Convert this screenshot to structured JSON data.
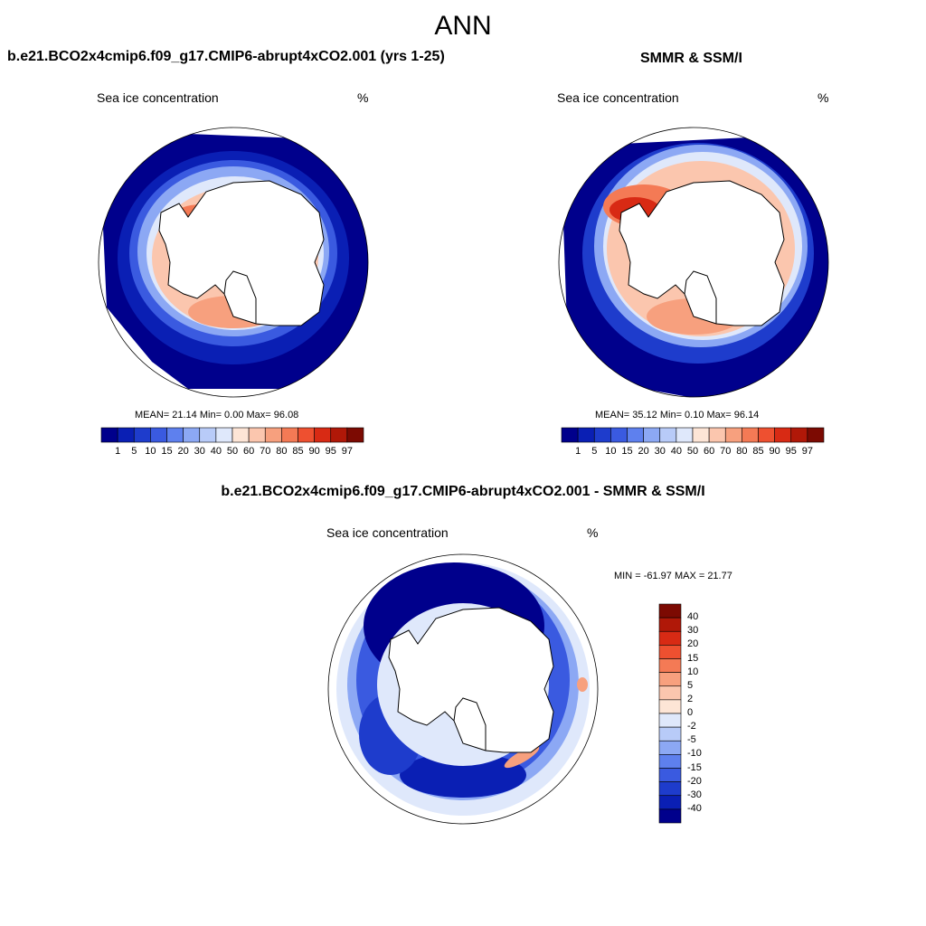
{
  "figure": {
    "season": "ANN"
  },
  "panels": {
    "model": {
      "title": "b.e21.BCO2x4cmip6.f09_g17.CMIP6-abrupt4xCO2.001 (yrs 1-25)",
      "variable": "Sea ice concentration",
      "units": "%",
      "stats": "MEAN=  21.14  Min=   0.00  Max=   96.08"
    },
    "obs": {
      "title": "SMMR & SSM/I",
      "variable": "Sea ice concentration",
      "units": "%",
      "stats": "MEAN=  35.12  Min=   0.10  Max=   96.14"
    },
    "diff": {
      "title": "b.e21.BCO2x4cmip6.f09_g17.CMIP6-abrupt4xCO2.001 - SMMR & SSM/I",
      "variable": "Sea ice concentration",
      "units": "%",
      "stats": "MIN = -61.97 MAX =  21.77"
    }
  },
  "colorbars": {
    "concentration": {
      "ticks": [
        "1",
        "5",
        "10",
        "15",
        "20",
        "30",
        "40",
        "50",
        "60",
        "70",
        "80",
        "85",
        "90",
        "95",
        "97"
      ],
      "colors": [
        "#00008c",
        "#0a1fb4",
        "#1e3ccc",
        "#3a5ae0",
        "#5e80ee",
        "#8ca8f4",
        "#b8cbf8",
        "#dfe8fb",
        "#fde5d6",
        "#fbc6ae",
        "#f7a07e",
        "#f47a55",
        "#ee5030",
        "#d82a14",
        "#b01808",
        "#7c0a02"
      ]
    },
    "difference": {
      "ticks": [
        "40",
        "30",
        "20",
        "15",
        "10",
        "5",
        "2",
        "0",
        "-2",
        "-5",
        "-10",
        "-15",
        "-20",
        "-30",
        "-40"
      ],
      "colors": [
        "#7c0a02",
        "#b01808",
        "#d82a14",
        "#ee5030",
        "#f47a55",
        "#f7a07e",
        "#fbc6ae",
        "#fde5d6",
        "#dfe8fb",
        "#b8cbf8",
        "#8ca8f4",
        "#5e80ee",
        "#3a5ae0",
        "#1e3ccc",
        "#0a1fb4",
        "#00008c"
      ]
    }
  }
}
